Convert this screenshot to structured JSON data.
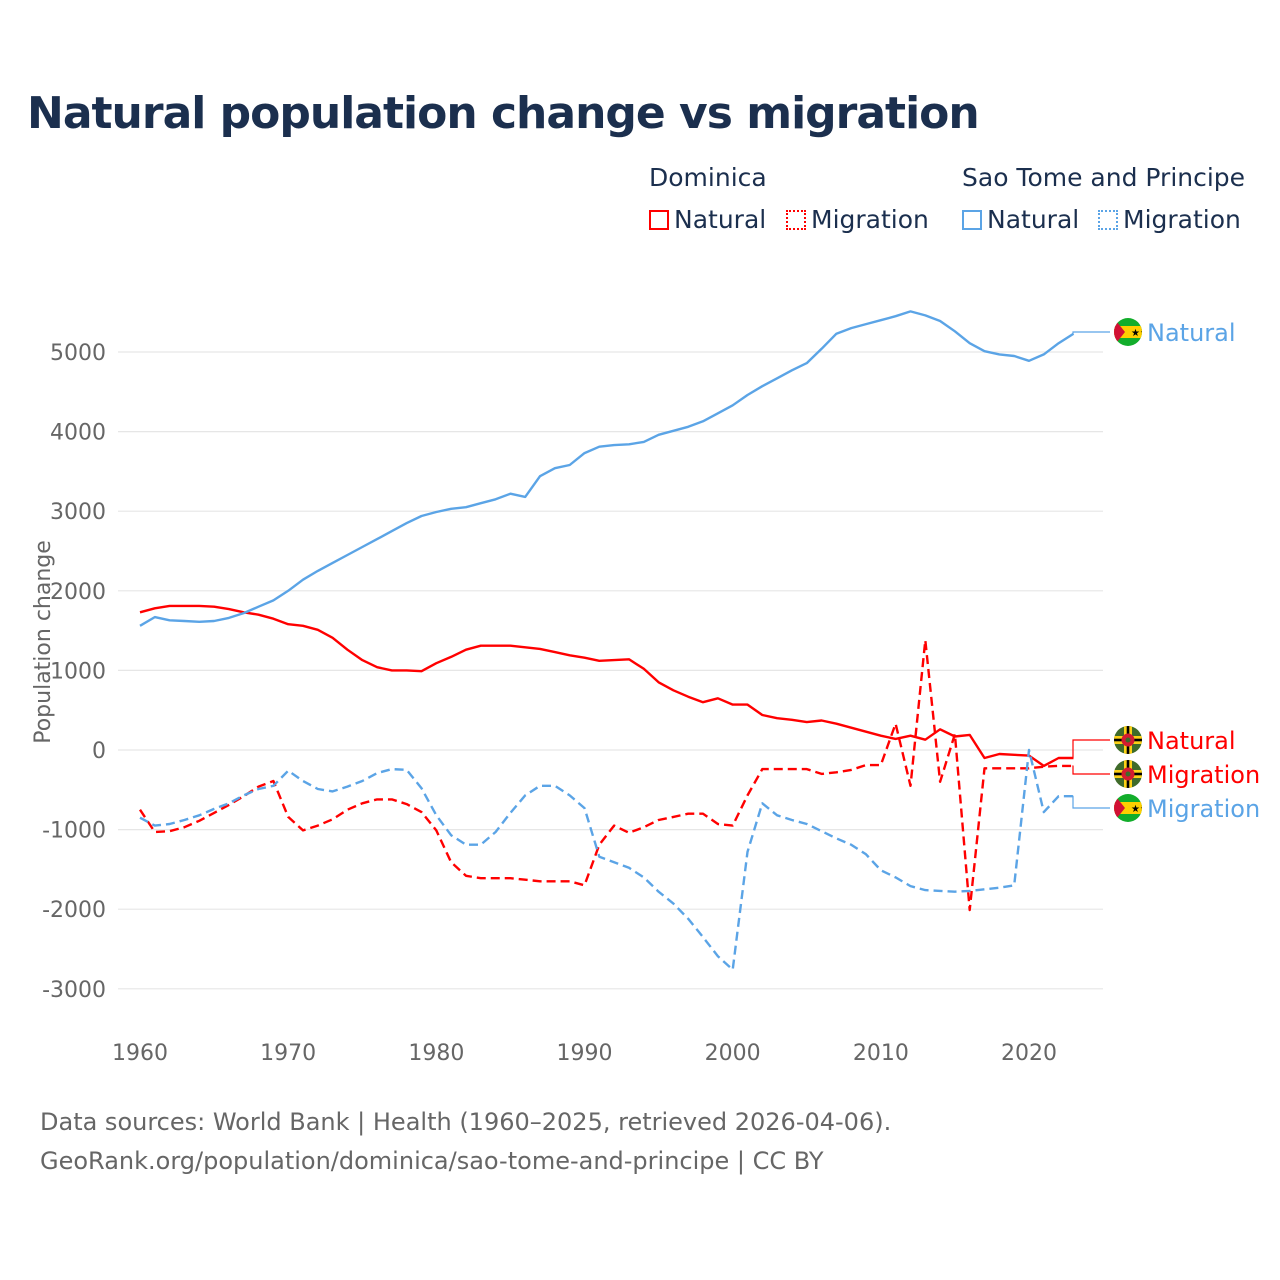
{
  "title": "Natural population change vs migration",
  "legend": {
    "groups": [
      {
        "country": "Dominica",
        "color": "#ff0000",
        "items": [
          "Natural",
          "Migration"
        ]
      },
      {
        "country": "Sao Tome and Principe",
        "color": "#5ba4e6",
        "items": [
          "Natural",
          "Migration"
        ]
      }
    ]
  },
  "footer": {
    "line1": "Data sources: World Bank | Health (1960–2025, retrieved 2026-04-06).",
    "line2": "GeoRank.org/population/dominica/sao-tome-and-principe | CC BY"
  },
  "chart_data": {
    "type": "line",
    "title": "Natural population change vs migration",
    "xlabel": "",
    "ylabel": "Population change",
    "xlim": [
      1960,
      2025
    ],
    "ylim": [
      -3000,
      5500
    ],
    "x_ticks": [
      1960,
      1970,
      1980,
      1990,
      2000,
      2010,
      2020
    ],
    "y_ticks": [
      -3000,
      -2000,
      -1000,
      0,
      1000,
      2000,
      3000,
      4000,
      5000
    ],
    "grid": true,
    "legend_position": "top-right",
    "x_start": 1960,
    "series": [
      {
        "name": "Natural",
        "country": "Dominica",
        "color": "#ff0000",
        "dash": false,
        "end_label": "Natural",
        "values": [
          1730,
          1780,
          1810,
          1810,
          1810,
          1800,
          1770,
          1730,
          1700,
          1650,
          1580,
          1560,
          1510,
          1410,
          1260,
          1130,
          1040,
          1000,
          1000,
          990,
          1090,
          1170,
          1260,
          1310,
          1310,
          1310,
          1290,
          1270,
          1230,
          1190,
          1160,
          1120,
          1130,
          1140,
          1020,
          850,
          750,
          670,
          600,
          650,
          570,
          570,
          440,
          400,
          380,
          350,
          370,
          330,
          280,
          230,
          180,
          140,
          180,
          130,
          260,
          170,
          190,
          -100,
          -50,
          -60,
          -70,
          -200,
          -100,
          -100
        ]
      },
      {
        "name": "Migration",
        "country": "Dominica",
        "color": "#ff0000",
        "dash": true,
        "end_label": "Migration",
        "values": [
          -750,
          -1030,
          -1020,
          -970,
          -890,
          -790,
          -690,
          -580,
          -460,
          -390,
          -840,
          -1010,
          -950,
          -870,
          -750,
          -670,
          -620,
          -620,
          -680,
          -780,
          -1010,
          -1410,
          -1580,
          -1610,
          -1610,
          -1610,
          -1630,
          -1650,
          -1650,
          -1650,
          -1700,
          -1190,
          -950,
          -1040,
          -970,
          -880,
          -840,
          -800,
          -800,
          -930,
          -950,
          -570,
          -240,
          -240,
          -240,
          -240,
          -300,
          -280,
          -250,
          -190,
          -190,
          330,
          -450,
          1380,
          -400,
          200,
          -2010,
          -230,
          -230,
          -230,
          -230,
          -210,
          -200,
          -200
        ]
      },
      {
        "name": "Natural",
        "country": "Sao Tome and Principe",
        "color": "#5ba4e6",
        "dash": false,
        "end_label": "Natural",
        "values": [
          1560,
          1670,
          1630,
          1620,
          1610,
          1620,
          1660,
          1720,
          1800,
          1880,
          2000,
          2140,
          2250,
          2350,
          2450,
          2550,
          2650,
          2750,
          2850,
          2940,
          2990,
          3030,
          3050,
          3100,
          3150,
          3220,
          3180,
          3440,
          3540,
          3580,
          3730,
          3810,
          3830,
          3840,
          3870,
          3960,
          4010,
          4060,
          4130,
          4230,
          4330,
          4460,
          4570,
          4670,
          4770,
          4860,
          5040,
          5230,
          5300,
          5350,
          5400,
          5450,
          5510,
          5460,
          5390,
          5260,
          5110,
          5010,
          4970,
          4950,
          4890,
          4970,
          5110,
          5230
        ]
      },
      {
        "name": "Migration",
        "country": "Sao Tome and Principe",
        "color": "#5ba4e6",
        "dash": true,
        "end_label": "Migration",
        "values": [
          -850,
          -950,
          -930,
          -880,
          -820,
          -740,
          -670,
          -570,
          -490,
          -450,
          -260,
          -390,
          -490,
          -520,
          -460,
          -390,
          -290,
          -240,
          -250,
          -480,
          -820,
          -1070,
          -1190,
          -1190,
          -1030,
          -790,
          -570,
          -450,
          -450,
          -570,
          -730,
          -1340,
          -1410,
          -1480,
          -1600,
          -1780,
          -1930,
          -2120,
          -2350,
          -2590,
          -2760,
          -1280,
          -670,
          -820,
          -880,
          -930,
          -1020,
          -1110,
          -1190,
          -1310,
          -1510,
          -1600,
          -1710,
          -1760,
          -1770,
          -1780,
          -1770,
          -1750,
          -1730,
          -1700,
          0,
          -780,
          -580,
          -580
        ]
      }
    ]
  }
}
